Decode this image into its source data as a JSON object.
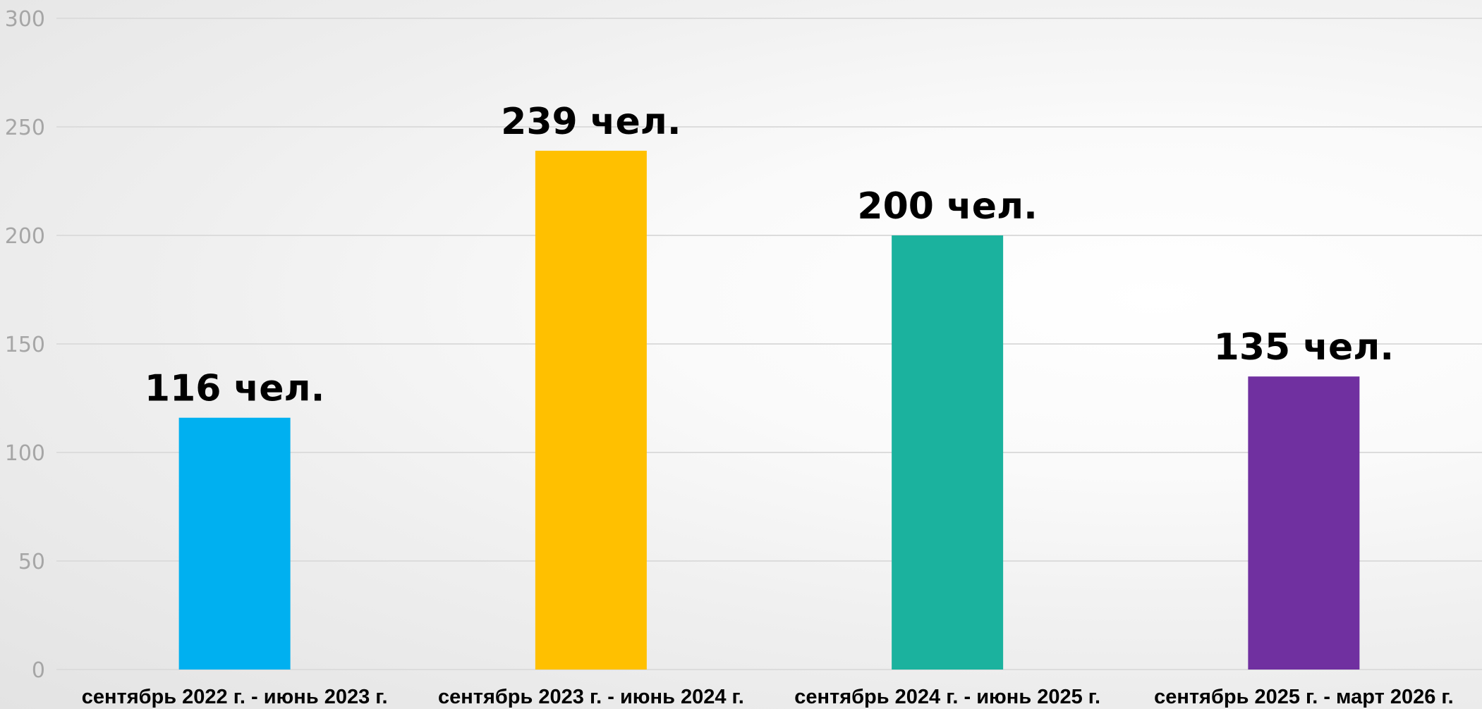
{
  "chart_data": {
    "type": "bar",
    "categories": [
      "сентябрь 2022 г. - июнь 2023 г.",
      "сентябрь 2023 г. - июнь 2024 г.",
      "сентябрь 2024 г. - июнь 2025 г.",
      "сентябрь 2025 г. - март 2026 г."
    ],
    "values": [
      116,
      239,
      200,
      135
    ],
    "data_labels": [
      "116 чел.",
      "239 чел.",
      "200 чел.",
      "135 чел."
    ],
    "colors": [
      "#00B0F0",
      "#FFC000",
      "#1BB29E",
      "#7030A0"
    ],
    "title": "",
    "xlabel": "",
    "ylabel": "",
    "ylim": [
      0,
      300
    ],
    "yticks": [
      0,
      50,
      100,
      150,
      200,
      250,
      300
    ],
    "grid": true,
    "legend": "none"
  }
}
